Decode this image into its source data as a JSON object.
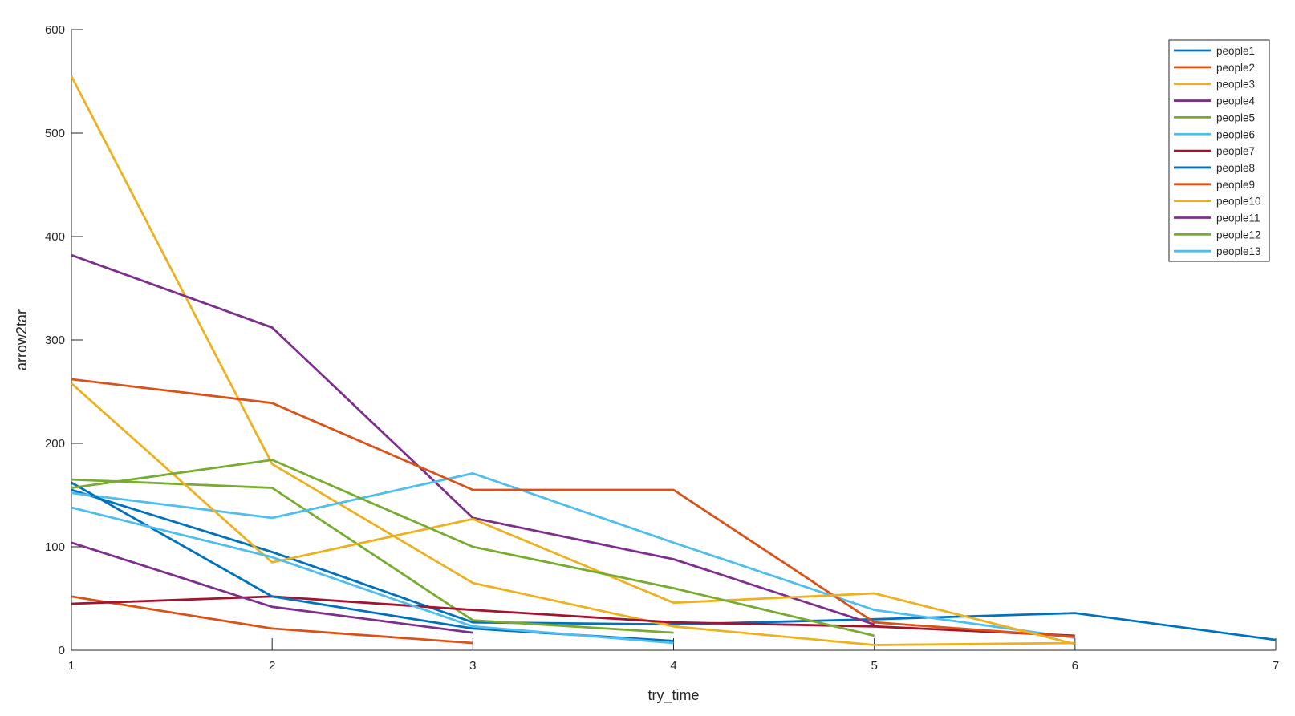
{
  "chart_data": {
    "type": "line",
    "xlabel": "try_time",
    "ylabel": "arrow2tar",
    "xlim": [
      1,
      7
    ],
    "ylim": [
      0,
      600
    ],
    "xticks": [
      1,
      2,
      3,
      4,
      5,
      6,
      7
    ],
    "yticks": [
      0,
      100,
      200,
      300,
      400,
      500,
      600
    ],
    "grid": false,
    "legend_position": "top-right",
    "series": [
      {
        "name": "people1",
        "color": "#0072BD",
        "x": [
          1,
          2,
          3,
          4,
          5,
          6,
          7
        ],
        "y": [
          155,
          95,
          27,
          25,
          30,
          36,
          10
        ]
      },
      {
        "name": "people2",
        "color": "#D95319",
        "x": [
          1,
          2,
          3
        ],
        "y": [
          52,
          21,
          7
        ]
      },
      {
        "name": "people3",
        "color": "#EDB120",
        "x": [
          1,
          2,
          3,
          4,
          5,
          6
        ],
        "y": [
          555,
          180,
          65,
          23,
          5,
          7
        ]
      },
      {
        "name": "people4",
        "color": "#7E2F8E",
        "x": [
          1,
          2,
          3,
          4,
          5
        ],
        "y": [
          382,
          312,
          128,
          88,
          25
        ]
      },
      {
        "name": "people5",
        "color": "#77AC30",
        "x": [
          1,
          2,
          3,
          4
        ],
        "y": [
          165,
          157,
          29,
          17
        ]
      },
      {
        "name": "people6",
        "color": "#4DBEEE",
        "x": [
          1,
          2,
          3,
          4,
          5,
          6
        ],
        "y": [
          152,
          128,
          171,
          104,
          39,
          12
        ]
      },
      {
        "name": "people7",
        "color": "#A2142F",
        "x": [
          1,
          2,
          3,
          4,
          5,
          6
        ],
        "y": [
          45,
          52,
          39,
          27,
          23,
          14
        ]
      },
      {
        "name": "people8",
        "color": "#0072BD",
        "x": [
          1,
          2,
          3,
          4
        ],
        "y": [
          162,
          52,
          21,
          9
        ]
      },
      {
        "name": "people9",
        "color": "#D95319",
        "x": [
          1,
          2,
          3,
          4,
          5,
          6
        ],
        "y": [
          262,
          239,
          155,
          155,
          27,
          13
        ]
      },
      {
        "name": "people10",
        "color": "#EDB120",
        "x": [
          1,
          2,
          3,
          4,
          5,
          6
        ],
        "y": [
          258,
          85,
          127,
          46,
          55,
          6
        ]
      },
      {
        "name": "people11",
        "color": "#7E2F8E",
        "x": [
          1,
          2,
          3
        ],
        "y": [
          104,
          42,
          17
        ]
      },
      {
        "name": "people12",
        "color": "#77AC30",
        "x": [
          1,
          2,
          3,
          4,
          5
        ],
        "y": [
          157,
          184,
          100,
          60,
          14
        ]
      },
      {
        "name": "people13",
        "color": "#4DBEEE",
        "x": [
          1,
          2,
          3,
          4
        ],
        "y": [
          138,
          90,
          23,
          7
        ]
      }
    ]
  }
}
